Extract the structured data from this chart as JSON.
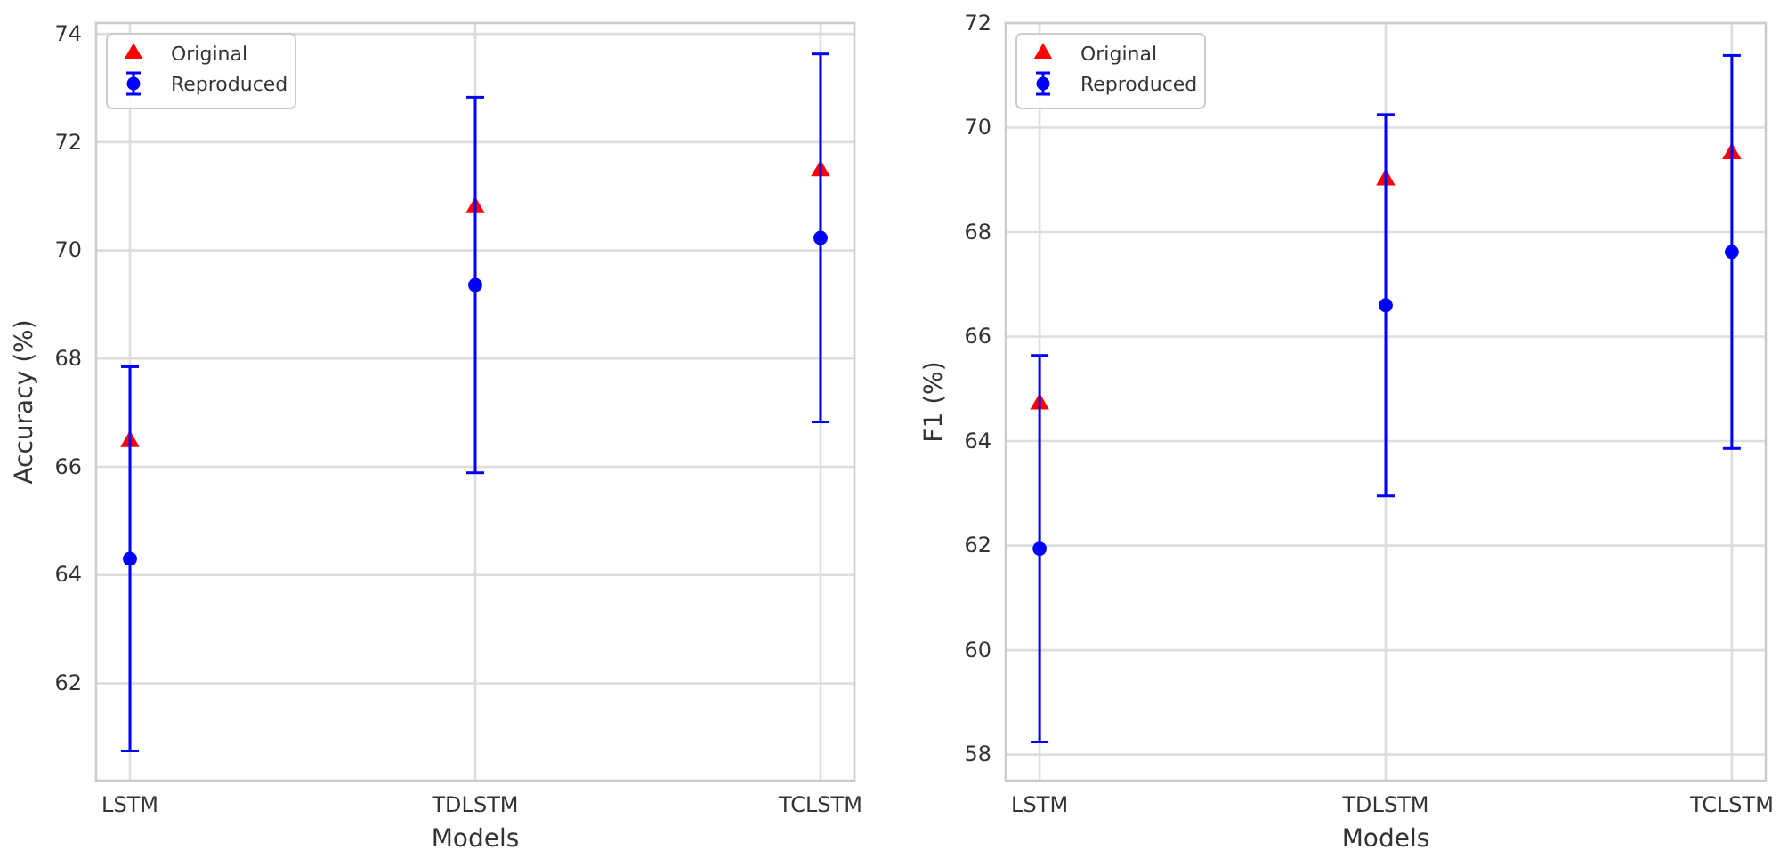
{
  "chart_data": [
    {
      "type": "scatter",
      "xlabel": "Models",
      "ylabel": "Accuracy (%)",
      "categories": [
        "LSTM",
        "TDLSTM",
        "TCLSTM"
      ],
      "ylim": [
        60.2,
        74.2
      ],
      "yticks": [
        62,
        64,
        66,
        68,
        70,
        72,
        74
      ],
      "grid": true,
      "legend": "top left",
      "series": [
        {
          "name": "Original",
          "color": "#ff0000",
          "marker": "triangle",
          "values": [
            66.47,
            70.79,
            71.47
          ]
        },
        {
          "name": "Reproduced",
          "color": "#0000ff",
          "marker": "circle",
          "values": [
            64.3,
            69.36,
            70.23
          ],
          "errors": [
            3.55,
            3.47,
            3.4
          ]
        }
      ]
    },
    {
      "type": "scatter",
      "xlabel": "Models",
      "ylabel": "F1 (%)",
      "categories": [
        "LSTM",
        "TDLSTM",
        "TCLSTM"
      ],
      "ylim": [
        57.5,
        72
      ],
      "yticks": [
        58,
        60,
        62,
        64,
        66,
        68,
        70,
        72
      ],
      "grid": true,
      "legend": "top left",
      "series": [
        {
          "name": "Original",
          "color": "#ff0000",
          "marker": "triangle",
          "values": [
            64.71,
            69.0,
            69.5
          ]
        },
        {
          "name": "Reproduced",
          "color": "#0000ff",
          "marker": "circle",
          "values": [
            61.94,
            66.6,
            67.62
          ],
          "errors": [
            3.7,
            3.65,
            3.76
          ]
        }
      ]
    }
  ]
}
